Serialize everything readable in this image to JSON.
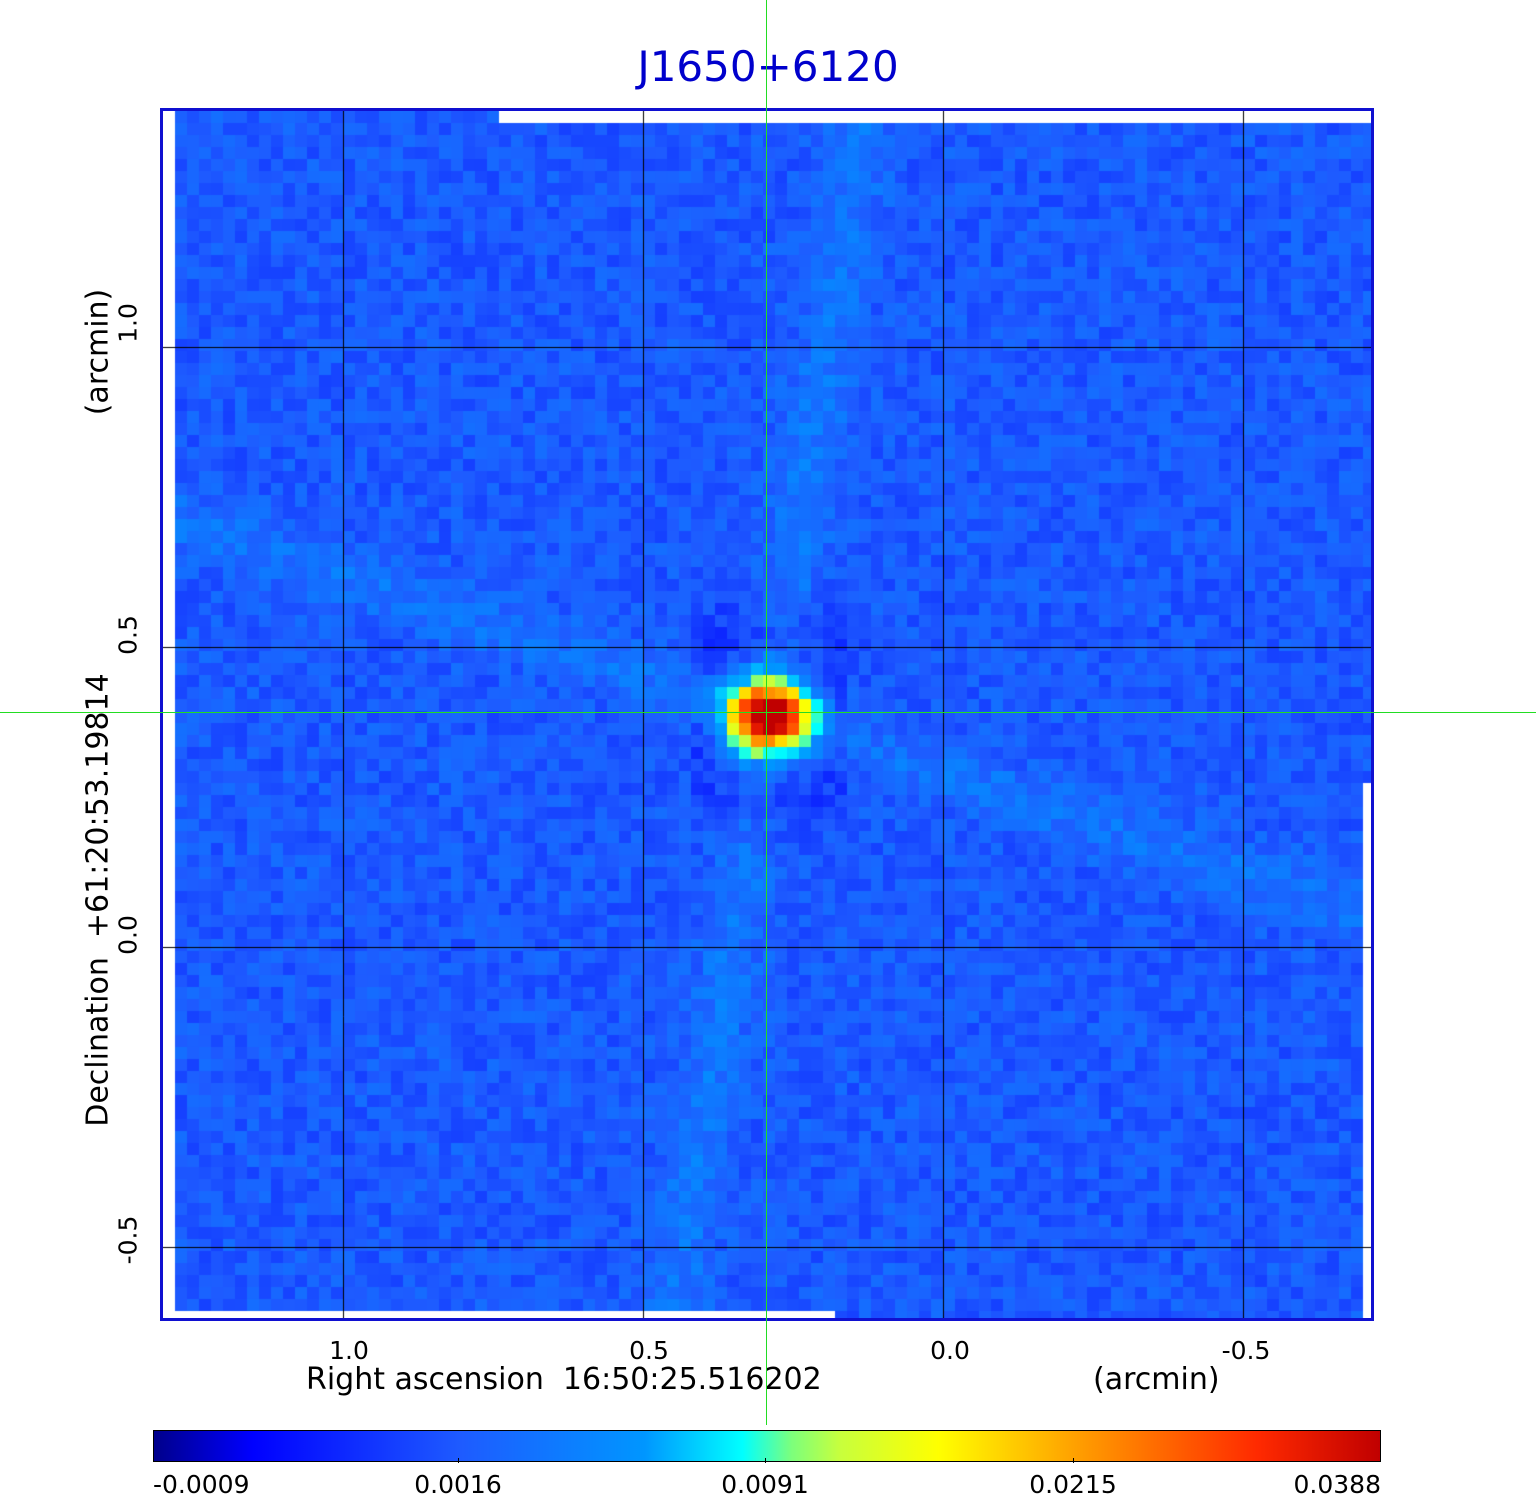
{
  "title": "J1650+6120",
  "axes": {
    "x_label": "Right ascension  16:50:25.516202",
    "x_unit": "(arcmin)",
    "y_label": "Declination  +61:20:53.19814",
    "y_unit": "(arcmin)",
    "x_ticks": [
      "1.0",
      "0.5",
      "0.0",
      "-0.5"
    ],
    "y_ticks": [
      "1.0",
      "0.5",
      "0.0",
      "-0.5"
    ]
  },
  "colorbar": {
    "ticks": [
      "-0.0009",
      "0.0016",
      "0.0091",
      "0.0215",
      "0.0388"
    ],
    "colormap": "jet"
  },
  "colors": {
    "title": "#0000cc",
    "frame": "#1010d0",
    "grid": "#000000",
    "crosshair": "#22dd22",
    "background_map": "#1e5bff",
    "source_peak": "#d40000"
  }
}
